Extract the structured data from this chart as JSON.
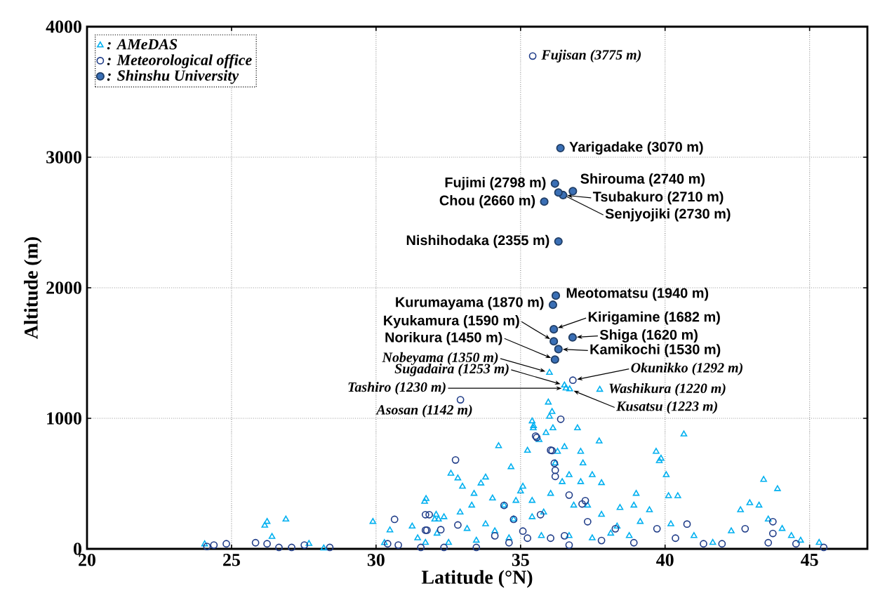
{
  "chart_data": {
    "type": "scatter",
    "xlabel": "Latitude (°N)",
    "ylabel": "Altitude (m)",
    "xlim": [
      20,
      47
    ],
    "ylim": [
      0,
      4000
    ],
    "xticks": [
      20,
      25,
      30,
      35,
      40,
      45
    ],
    "yticks": [
      0,
      1000,
      2000,
      3000,
      4000
    ],
    "grid": true,
    "legend": "top left",
    "series": [
      {
        "name": ": AMeDAS",
        "color": "#00b0f0",
        "marker": "triangle",
        "x": [
          36.0,
          36.52,
          36.57,
          36.7,
          37.74,
          24.07,
          26.23,
          26.15,
          26.4,
          26.88,
          27.68,
          28.19,
          29.89,
          30.48,
          30.29,
          31.25,
          31.68,
          31.73,
          31.44,
          32.08,
          32.16,
          32.59,
          32.83,
          32.99,
          33.39,
          33.79,
          33.63,
          34.24,
          34.67,
          35.24,
          35.4,
          35.44,
          35.96,
          36.0,
          35.88,
          35.64,
          36.12,
          36.52,
          36.97,
          37.08,
          37.72,
          37.16,
          37.48,
          37.8,
          37.08,
          36.68,
          36.2,
          36.44,
          35.08,
          34.84,
          34.43,
          34.03,
          33.31,
          32.91,
          32.35,
          32.03,
          32.11,
          33.15,
          33.79,
          34.11,
          34.76,
          35.4,
          35.8,
          36.04,
          36.84,
          37.32,
          37.8,
          38.44,
          38.92,
          39.0,
          39.69,
          39.8,
          40.04,
          40.12,
          40.44,
          40.65,
          39.46,
          39.14,
          38.34,
          38.12,
          40.2,
          41.0,
          41.65,
          42.29,
          42.61,
          42.93,
          43.41,
          43.89,
          43.25,
          43.57,
          44.05,
          44.37,
          44.69,
          45.33,
          38.76,
          37.48,
          36.68,
          35.72,
          34.6,
          33.47,
          32.51,
          31.71,
          35.4,
          35.0,
          36.28,
          36.09,
          35.45,
          39.86
        ],
        "values": [
          1350,
          1253,
          1230,
          1223,
          1220,
          36,
          208,
          179,
          93,
          226,
          39,
          5,
          208,
          143,
          46,
          172,
          362,
          383,
          82,
          262,
          226,
          577,
          541,
          477,
          423,
          548,
          502,
          788,
          627,
          753,
          978,
          925,
          1122,
          1014,
          889,
          835,
          925,
          781,
          925,
          745,
          824,
          656,
          566,
          505,
          513,
          566,
          656,
          513,
          477,
          369,
          333,
          387,
          333,
          280,
          244,
          226,
          118,
          154,
          190,
          136,
          226,
          244,
          280,
          423,
          333,
          333,
          262,
          315,
          333,
          423,
          745,
          674,
          566,
          405,
          405,
          878,
          297,
          208,
          172,
          118,
          190,
          100,
          47,
          136,
          297,
          351,
          530,
          459,
          333,
          226,
          154,
          100,
          64,
          47,
          100,
          82,
          100,
          100,
          82,
          64,
          47,
          47,
          369,
          441,
          745,
          1050,
          942,
          692
        ]
      },
      {
        "name": ": Meteorological office",
        "color": "#1f3c88",
        "marker": "circle",
        "x": [
          35.42,
          36.81,
          32.92,
          24.15,
          24.39,
          24.82,
          25.83,
          26.23,
          26.64,
          27.08,
          27.52,
          28.4,
          30.64,
          30.4,
          30.77,
          31.84,
          31.76,
          32.24,
          32.75,
          31.71,
          31.71,
          32.83,
          34.43,
          34.76,
          35.52,
          36.04,
          36.17,
          36.2,
          36.2,
          36.39,
          36.68,
          37.24,
          37.13,
          35.69,
          37.32,
          38.28,
          39.72,
          40.76,
          42.77,
          43.73,
          43.73,
          45.49,
          34.6,
          35.24,
          33.47,
          32.35,
          31.55,
          36.68,
          37.8,
          38.92,
          41.33,
          41.97,
          44.53,
          43.57,
          40.36,
          36.04,
          34.11,
          35.08,
          36.52,
          35.56,
          36.09
        ],
        "values": [
          3775,
          1292,
          1142,
          18,
          29,
          39,
          47,
          39,
          11,
          11,
          29,
          11,
          226,
          39,
          29,
          262,
          143,
          147,
          681,
          262,
          143,
          183,
          333,
          226,
          864,
          756,
          656,
          602,
          555,
          993,
          412,
          369,
          344,
          262,
          208,
          154,
          154,
          190,
          154,
          208,
          118,
          11,
          47,
          82,
          11,
          11,
          11,
          29,
          64,
          47,
          39,
          39,
          39,
          47,
          82,
          82,
          100,
          136,
          100,
          853,
          753
        ]
      },
      {
        "name": ": Shinshu University",
        "color": "#3a6fb5",
        "marker": "circle",
        "x": [
          36.38,
          36.19,
          36.81,
          36.47,
          36.31,
          35.82,
          36.31,
          36.22,
          36.12,
          36.15,
          36.15,
          36.8,
          36.31,
          36.19
        ],
        "values": [
          3070,
          2798,
          2740,
          2710,
          2730,
          2660,
          2355,
          1940,
          1870,
          1682,
          1590,
          1620,
          1530,
          1450
        ]
      }
    ],
    "annotations": [
      {
        "text": "Fujisan (3775 m)",
        "x": 35.42,
        "y": 3775
      },
      {
        "text": "Yarigadake (3070 m)",
        "x": 36.38,
        "y": 3070
      },
      {
        "text": "Fujimi (2798 m)",
        "x": 36.19,
        "y": 2798
      },
      {
        "text": "Shirouma (2740 m)",
        "x": 36.81,
        "y": 2740
      },
      {
        "text": "Tsubakuro (2710 m)",
        "x": 36.47,
        "y": 2710
      },
      {
        "text": "Senjyojiki (2730 m)",
        "x": 36.31,
        "y": 2730
      },
      {
        "text": "Chou (2660 m)",
        "x": 35.82,
        "y": 2660
      },
      {
        "text": "Nishihodaka (2355 m)",
        "x": 36.31,
        "y": 2355
      },
      {
        "text": "Meotomatsu (1940 m)",
        "x": 36.22,
        "y": 1940
      },
      {
        "text": "Kurumayama (1870 m)",
        "x": 36.12,
        "y": 1870
      },
      {
        "text": "Kirigamine (1682 m)",
        "x": 36.15,
        "y": 1682
      },
      {
        "text": "Kyukamura (1590 m)",
        "x": 36.15,
        "y": 1590
      },
      {
        "text": "Shiga (1620 m)",
        "x": 36.8,
        "y": 1620
      },
      {
        "text": "Kamikochi (1530 m)",
        "x": 36.31,
        "y": 1530
      },
      {
        "text": "Norikura (1450 m)",
        "x": 36.19,
        "y": 1450
      },
      {
        "text": "Nobeyama (1350 m)",
        "x": 36.0,
        "y": 1350
      },
      {
        "text": "Okunikko (1292 m)",
        "x": 36.81,
        "y": 1292
      },
      {
        "text": "Sugadaira (1253 m)",
        "x": 36.52,
        "y": 1253
      },
      {
        "text": "Tashiro (1230 m)",
        "x": 36.57,
        "y": 1230
      },
      {
        "text": "Kusatsu (1223 m)",
        "x": 36.7,
        "y": 1223
      },
      {
        "text": "Washikura (1220 m)",
        "x": 37.74,
        "y": 1220
      },
      {
        "text": "Asosan (1142 m)",
        "x": 32.92,
        "y": 1142
      }
    ]
  }
}
